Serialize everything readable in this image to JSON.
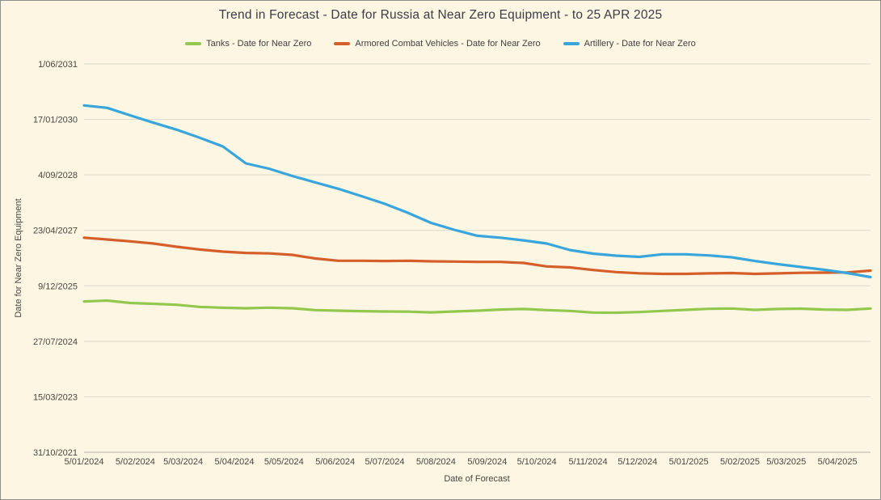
{
  "title": "Trend in Forecast - Date for Russia at Near Zero Equipment - to 25 APR 2025",
  "chart_data": {
    "type": "line",
    "title": "Trend in Forecast - Date for Russia at Near Zero Equipment - to 25 APR 2025",
    "xlabel": "Date of Forecast",
    "ylabel": "Date for Near Zero Equipment",
    "grid": "horizontal-only",
    "legend_position": "top-center",
    "background_color": "#FCF6E3",
    "x_axis": {
      "min": "2024-01-05",
      "max": "2025-04-25",
      "ticks": [
        {
          "date": "2024-01-05",
          "label": "5/01/2024"
        },
        {
          "date": "2024-02-05",
          "label": "5/02/2024"
        },
        {
          "date": "2024-03-05",
          "label": "5/03/2024"
        },
        {
          "date": "2024-04-05",
          "label": "5/04/2024"
        },
        {
          "date": "2024-05-05",
          "label": "5/05/2024"
        },
        {
          "date": "2024-06-05",
          "label": "5/06/2024"
        },
        {
          "date": "2024-07-05",
          "label": "5/07/2024"
        },
        {
          "date": "2024-08-05",
          "label": "5/08/2024"
        },
        {
          "date": "2024-09-05",
          "label": "5/09/2024"
        },
        {
          "date": "2024-10-05",
          "label": "5/10/2024"
        },
        {
          "date": "2024-11-05",
          "label": "5/11/2024"
        },
        {
          "date": "2024-12-05",
          "label": "5/12/2024"
        },
        {
          "date": "2025-01-05",
          "label": "5/01/2025"
        },
        {
          "date": "2025-02-05",
          "label": "5/02/2025"
        },
        {
          "date": "2025-03-05",
          "label": "5/03/2025"
        },
        {
          "date": "2025-04-05",
          "label": "5/04/2025"
        }
      ]
    },
    "y_axis": {
      "min": "2021-10-31",
      "max": "2031-06-01",
      "ticks": [
        {
          "date": "2021-10-31",
          "label": "31/10/2021"
        },
        {
          "date": "2023-03-15",
          "label": "15/03/2023"
        },
        {
          "date": "2024-07-27",
          "label": "27/07/2024"
        },
        {
          "date": "2025-12-09",
          "label": "9/12/2025"
        },
        {
          "date": "2027-04-23",
          "label": "23/04/2027"
        },
        {
          "date": "2028-09-04",
          "label": "4/09/2028"
        },
        {
          "date": "2030-01-17",
          "label": "17/01/2030"
        },
        {
          "date": "2031-06-01",
          "label": "1/06/2031"
        }
      ]
    },
    "x": [
      "2024-01-05",
      "2024-01-19",
      "2024-02-02",
      "2024-02-16",
      "2024-03-01",
      "2024-03-15",
      "2024-03-29",
      "2024-04-12",
      "2024-04-26",
      "2024-05-10",
      "2024-05-24",
      "2024-06-07",
      "2024-06-21",
      "2024-07-05",
      "2024-07-19",
      "2024-08-02",
      "2024-08-16",
      "2024-08-30",
      "2024-09-13",
      "2024-09-27",
      "2024-10-11",
      "2024-10-25",
      "2024-11-08",
      "2024-11-22",
      "2024-12-06",
      "2024-12-20",
      "2025-01-03",
      "2025-01-17",
      "2025-01-31",
      "2025-02-14",
      "2025-02-28",
      "2025-03-14",
      "2025-03-28",
      "2025-04-11",
      "2025-04-25"
    ],
    "series": [
      {
        "id": "tanks",
        "name": "Tanks - Date for Near Zero",
        "color": "#93C84E",
        "values": [
          "2025-07-21",
          "2025-07-29",
          "2025-07-07",
          "2025-06-30",
          "2025-06-21",
          "2025-06-02",
          "2025-05-25",
          "2025-05-21",
          "2025-05-26",
          "2025-05-21",
          "2025-05-04",
          "2025-04-29",
          "2025-04-25",
          "2025-04-22",
          "2025-04-20",
          "2025-04-14",
          "2025-04-22",
          "2025-04-29",
          "2025-05-09",
          "2025-05-14",
          "2025-05-04",
          "2025-04-27",
          "2025-04-12",
          "2025-04-11",
          "2025-04-17",
          "2025-04-27",
          "2025-05-06",
          "2025-05-16",
          "2025-05-19",
          "2025-05-06",
          "2025-05-14",
          "2025-05-17",
          "2025-05-09",
          "2025-05-06",
          "2025-05-19"
        ]
      },
      {
        "id": "armored-combat-vehicles",
        "name": "Armored Combat Vehicles - Date for Near Zero",
        "color": "#D55F2B",
        "values": [
          "2027-02-16",
          "2027-01-31",
          "2027-01-14",
          "2026-12-25",
          "2026-11-26",
          "2026-11-01",
          "2026-10-13",
          "2026-10-02",
          "2026-09-27",
          "2026-09-14",
          "2026-08-12",
          "2026-07-23",
          "2026-07-23",
          "2026-07-21",
          "2026-07-23",
          "2026-07-18",
          "2026-07-16",
          "2026-07-13",
          "2026-07-13",
          "2026-07-03",
          "2026-06-02",
          "2026-05-24",
          "2026-05-01",
          "2026-04-12",
          "2026-04-01",
          "2026-03-27",
          "2026-03-27",
          "2026-03-31",
          "2026-04-03",
          "2026-03-27",
          "2026-03-31",
          "2026-04-05",
          "2026-04-07",
          "2026-04-09",
          "2026-04-25"
        ]
      },
      {
        "id": "artillery",
        "name": "Artillery - Date for Near Zero",
        "color": "#38A6DC",
        "values": [
          "2030-05-23",
          "2030-05-01",
          "2030-02-22",
          "2029-12-18",
          "2029-10-16",
          "2029-08-04",
          "2029-05-18",
          "2028-12-16",
          "2028-10-30",
          "2028-08-25",
          "2028-06-28",
          "2028-05-01",
          "2028-02-25",
          "2027-12-18",
          "2027-09-28",
          "2027-06-29",
          "2027-04-28",
          "2027-03-05",
          "2027-02-16",
          "2027-01-23",
          "2026-12-25",
          "2026-10-28",
          "2026-09-25",
          "2026-09-07",
          "2026-08-27",
          "2026-09-19",
          "2026-09-19",
          "2026-09-09",
          "2026-08-23",
          "2026-07-21",
          "2026-06-22",
          "2026-05-28",
          "2026-05-02",
          "2026-04-03",
          "2026-02-26"
        ]
      }
    ]
  }
}
